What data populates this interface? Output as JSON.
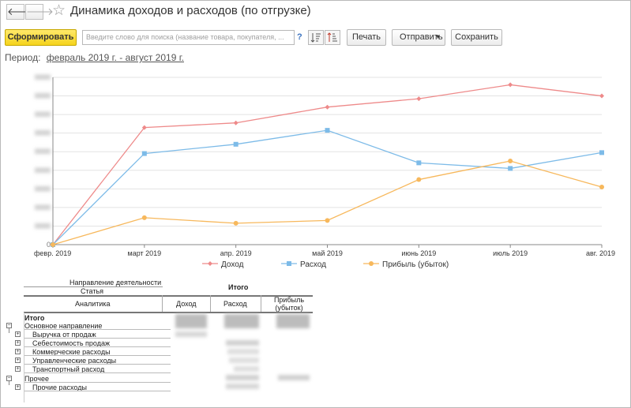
{
  "window": {
    "title": "Динамика доходов и расходов (по отгрузке)"
  },
  "toolbar": {
    "generate_label": "Сформировать",
    "search_placeholder": "Введите слово для поиска (название товара, покупателя, ...",
    "help_label": "?",
    "print_label": "Печать",
    "send_label": "Отправить",
    "save_label": "Сохранить"
  },
  "period": {
    "label": "Период:",
    "value": "февраль 2019 г. - август 2019 г."
  },
  "chart_data": {
    "type": "line",
    "categories": [
      "февр. 2019",
      "март 2019",
      "апр. 2019",
      "май 2019",
      "июнь 2019",
      "июль 2019",
      "авг. 2019"
    ],
    "y_tick_labels": [
      "0",
      "0000",
      "0000",
      "0000",
      "0000",
      "0000",
      "0000",
      "0000",
      "0000",
      "0000"
    ],
    "ylim": [
      0,
      9
    ],
    "grid": true,
    "legend_position": "bottom",
    "series": [
      {
        "name": "Доход",
        "color": "#ee8a8a",
        "marker": "diamond",
        "values": [
          0,
          6.3,
          6.55,
          7.4,
          7.85,
          8.6,
          8.0
        ]
      },
      {
        "name": "Расход",
        "color": "#7dbbe8",
        "marker": "square",
        "values": [
          0,
          4.9,
          5.4,
          6.15,
          4.4,
          4.1,
          4.95
        ]
      },
      {
        "name": "Прибыль (убыток)",
        "color": "#f7b85c",
        "marker": "circle",
        "values": [
          0,
          1.45,
          1.15,
          1.3,
          3.5,
          4.5,
          3.1
        ]
      }
    ]
  },
  "report": {
    "header": {
      "direction": "Направление деятельности",
      "article": "Статья",
      "analytics": "Аналитика",
      "total_group": "Итого",
      "income": "Доход",
      "expense": "Расход",
      "profit": "Прибыль (убыток)"
    },
    "rows": [
      {
        "label": "Итого"
      },
      {
        "label": "Основное направление"
      },
      {
        "label": "Выручка от продаж"
      },
      {
        "label": "Себестоимость продаж"
      },
      {
        "label": "Коммерческие расходы"
      },
      {
        "label": "Управленческие расходы"
      },
      {
        "label": "Транспортный расход"
      },
      {
        "label": "Прочее"
      },
      {
        "label": "Прочие расходы"
      }
    ]
  }
}
